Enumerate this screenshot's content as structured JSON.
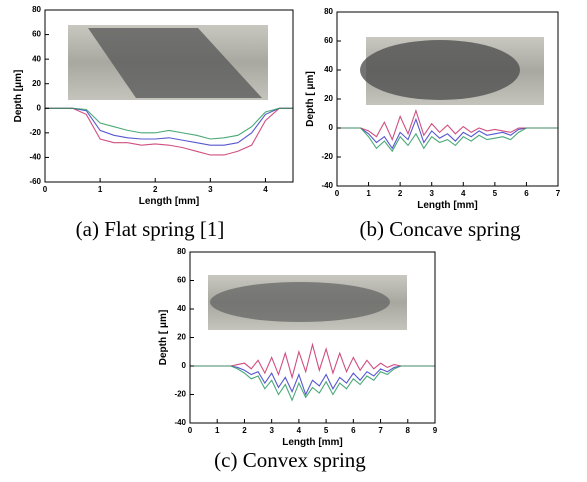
{
  "chart_data": [
    {
      "type": "line",
      "caption": "(a) Flat spring [1]",
      "xlabel": "Length [mm]",
      "ylabel": "Depth [μm]",
      "xlim": [
        0,
        4.5
      ],
      "xticks": [
        0,
        1,
        2,
        3,
        4
      ],
      "ylim": [
        -60,
        80
      ],
      "yticks": [
        -60,
        -40,
        -20,
        0,
        20,
        40,
        60,
        80
      ],
      "x": [
        0,
        0.25,
        0.5,
        0.75,
        1,
        1.25,
        1.5,
        1.75,
        2,
        2.25,
        2.5,
        2.75,
        3,
        3.25,
        3.5,
        3.75,
        4,
        4.25,
        4.5
      ],
      "series": [
        {
          "color": "#3a3ac8",
          "values": [
            0,
            0,
            0,
            -2,
            -18,
            -22,
            -24,
            -25,
            -25,
            -24,
            -26,
            -28,
            -30,
            -30,
            -28,
            -20,
            -5,
            0,
            0
          ]
        },
        {
          "color": "#c8306a",
          "values": [
            0,
            0,
            0,
            -5,
            -25,
            -28,
            -28,
            -30,
            -29,
            -30,
            -32,
            -35,
            -38,
            -38,
            -35,
            -30,
            -10,
            0,
            0
          ]
        },
        {
          "color": "#2a9a60",
          "values": [
            0,
            0,
            0,
            -1,
            -12,
            -15,
            -18,
            -20,
            -20,
            -18,
            -20,
            -22,
            -25,
            -24,
            -22,
            -15,
            -3,
            0,
            0
          ]
        }
      ]
    },
    {
      "type": "line",
      "caption": "(b) Concave spring",
      "xlabel": "Length [mm]",
      "ylabel": "Depth [ μm]",
      "xlim": [
        0,
        7
      ],
      "xticks": [
        0,
        1,
        2,
        3,
        4,
        5,
        6,
        7
      ],
      "ylim": [
        -40,
        80
      ],
      "yticks": [
        -40,
        -20,
        0,
        20,
        40,
        60,
        80
      ],
      "x": [
        0,
        0.25,
        0.5,
        0.75,
        1,
        1.25,
        1.5,
        1.75,
        2,
        2.25,
        2.5,
        2.75,
        3,
        3.25,
        3.5,
        3.75,
        4,
        4.25,
        4.5,
        4.75,
        5,
        5.25,
        5.5,
        5.75,
        6,
        6.25,
        6.5,
        6.75,
        7
      ],
      "series": [
        {
          "color": "#3a3ac8",
          "values": [
            0,
            0,
            0,
            0,
            -4,
            -10,
            -6,
            -14,
            -3,
            -8,
            6,
            -10,
            -2,
            -7,
            -4,
            -9,
            -3,
            -6,
            -2,
            -5,
            -4,
            -3,
            -5,
            -1,
            0,
            0,
            0,
            0,
            0
          ]
        },
        {
          "color": "#c8306a",
          "values": [
            0,
            0,
            0,
            0,
            -2,
            -6,
            4,
            -8,
            8,
            -4,
            12,
            -5,
            3,
            -3,
            2,
            -4,
            1,
            -3,
            0,
            -2,
            -1,
            -2,
            -3,
            0,
            0,
            0,
            0,
            0,
            0
          ]
        },
        {
          "color": "#2a9a60",
          "values": [
            0,
            0,
            0,
            0,
            -6,
            -14,
            -9,
            -16,
            -6,
            -12,
            -4,
            -14,
            -6,
            -10,
            -8,
            -12,
            -6,
            -9,
            -5,
            -8,
            -7,
            -6,
            -8,
            -3,
            0,
            0,
            0,
            0,
            0
          ]
        }
      ]
    },
    {
      "type": "line",
      "caption": "(c) Convex spring",
      "xlabel": "Length [mm]",
      "ylabel": "Depth [ μm]",
      "xlim": [
        0,
        9
      ],
      "xticks": [
        0,
        1,
        2,
        3,
        4,
        5,
        6,
        7,
        8,
        9
      ],
      "ylim": [
        -40,
        80
      ],
      "yticks": [
        -40,
        -20,
        0,
        20,
        40,
        60,
        80
      ],
      "x": [
        0,
        0.25,
        0.5,
        0.75,
        1,
        1.25,
        1.5,
        1.75,
        2,
        2.25,
        2.5,
        2.75,
        3,
        3.25,
        3.5,
        3.75,
        4,
        4.25,
        4.5,
        4.75,
        5,
        5.25,
        5.5,
        5.75,
        6,
        6.25,
        6.5,
        6.75,
        7,
        7.25,
        7.5,
        7.75,
        8,
        8.25,
        8.5,
        8.75,
        9
      ],
      "series": [
        {
          "color": "#3a3ac8",
          "values": [
            0,
            0,
            0,
            0,
            0,
            0,
            0,
            -1,
            -3,
            -6,
            -4,
            -12,
            -5,
            -15,
            -8,
            -18,
            -6,
            -20,
            -10,
            -14,
            -6,
            -16,
            -8,
            -12,
            -5,
            -10,
            -4,
            -7,
            -2,
            -4,
            -1,
            0,
            0,
            0,
            0,
            0,
            0
          ]
        },
        {
          "color": "#c8306a",
          "values": [
            0,
            0,
            0,
            0,
            0,
            0,
            0,
            1,
            2,
            -2,
            4,
            -5,
            6,
            -6,
            9,
            -8,
            10,
            -4,
            15,
            -3,
            12,
            -5,
            9,
            -4,
            6,
            -3,
            4,
            -2,
            2,
            -1,
            1,
            0,
            0,
            0,
            0,
            0,
            0
          ]
        },
        {
          "color": "#2a9a60",
          "values": [
            0,
            0,
            0,
            0,
            0,
            0,
            0,
            -2,
            -5,
            -9,
            -7,
            -16,
            -10,
            -20,
            -13,
            -24,
            -12,
            -22,
            -15,
            -19,
            -11,
            -20,
            -12,
            -16,
            -9,
            -13,
            -7,
            -10,
            -4,
            -6,
            -2,
            0,
            0,
            0,
            0,
            0,
            0
          ]
        }
      ]
    }
  ]
}
